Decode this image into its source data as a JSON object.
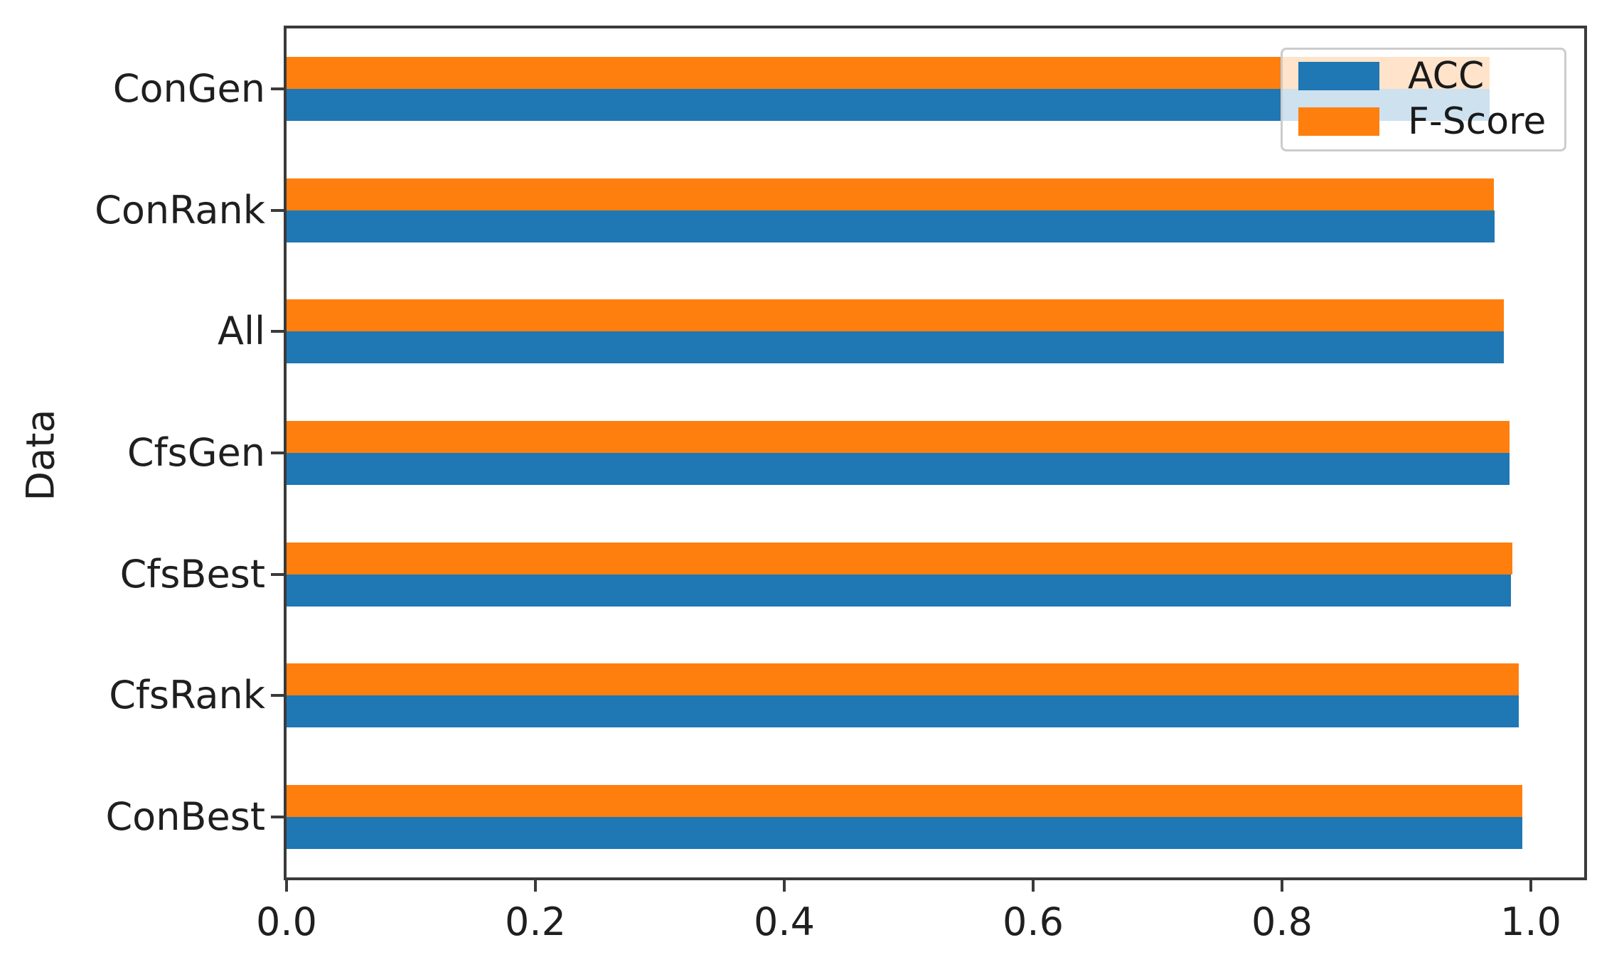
{
  "chart_data": {
    "type": "bar",
    "orientation": "horizontal",
    "title": "",
    "xlabel": "",
    "ylabel": "Data",
    "categories_top_to_bottom": [
      "ConGen",
      "ConRank",
      "All",
      "CfsGen",
      "CfsBest",
      "CfsRank",
      "ConBest"
    ],
    "series": [
      {
        "name": "ACC",
        "color": "#1f77b4",
        "values": [
          0.967,
          0.971,
          0.978,
          0.983,
          0.984,
          0.99,
          0.993
        ]
      },
      {
        "name": "F-Score",
        "color": "#ff7f0e",
        "values": [
          0.967,
          0.97,
          0.978,
          0.983,
          0.985,
          0.99,
          0.993
        ]
      }
    ],
    "group_bar_order_top_to_bottom": [
      "F-Score",
      "ACC"
    ],
    "xlim": [
      0.0,
      1.043
    ],
    "xticks": [
      0.0,
      0.2,
      0.4,
      0.6,
      0.8,
      1.0
    ],
    "xtick_labels": [
      "0.0",
      "0.2",
      "0.4",
      "0.6",
      "0.8",
      "1.0"
    ],
    "grid": false,
    "legend": {
      "position": "upper-right",
      "entries": [
        "ACC",
        "F-Score"
      ]
    }
  },
  "style_colors": {
    "spine": "#3a3a3a",
    "tick_text": "#1f1f1f",
    "legend_border": "#cccccc",
    "background": "#ffffff"
  }
}
